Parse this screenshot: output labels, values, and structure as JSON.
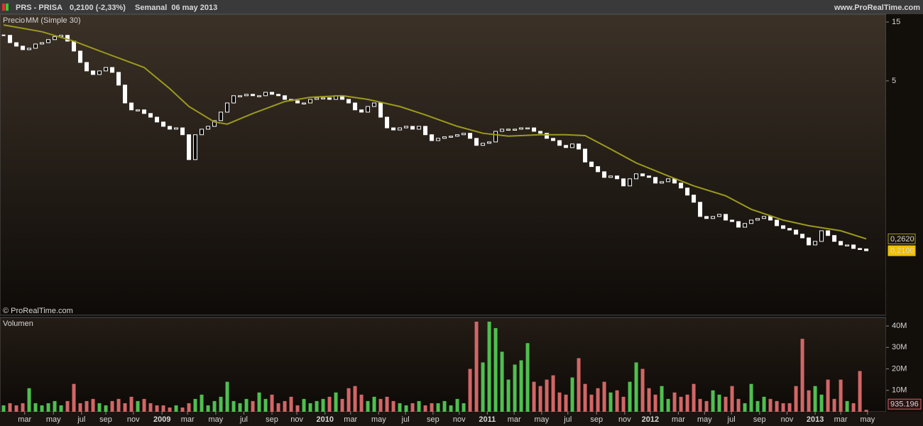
{
  "header": {
    "symbol": "PRS - PRISA",
    "quote": "0,2100 (-2,33%)",
    "period": "Semanal  06 may 2013",
    "site": "www.ProRealTime.com",
    "copyright": "© ProRealTime.com"
  },
  "chart_data": [
    {
      "type": "candlestick",
      "log_scale": true,
      "series": [
        {
          "name": "Precio",
          "color": "#ffffff",
          "values": [
            11.7,
            10.2,
            9.56,
            8.95,
            9.19,
            9.95,
            10.2,
            10.8,
            11.4,
            11.7,
            10.5,
            8.72,
            7.05,
            6.02,
            5.63,
            6.02,
            6.42,
            5.86,
            4.62,
            3.31,
            2.91,
            2.91,
            2.72,
            2.54,
            2.32,
            2.14,
            2.03,
            2.08,
            1.83,
            1.15,
            1.83,
            2.03,
            2.14,
            2.38,
            2.79,
            3.31,
            3.79,
            3.79,
            3.89,
            3.79,
            3.79,
            4.04,
            3.89,
            3.79,
            3.54,
            3.45,
            3.31,
            3.31,
            3.54,
            3.64,
            3.64,
            3.54,
            3.79,
            3.54,
            3.31,
            2.91,
            2.79,
            3.1,
            3.31,
            2.54,
            2.08,
            2.0,
            2.08,
            2.14,
            2.03,
            2.14,
            1.83,
            1.64,
            1.71,
            1.76,
            1.78,
            1.83,
            1.88,
            1.71,
            1.5,
            1.56,
            1.6,
            1.95,
            2.03,
            2.03,
            2.03,
            2.08,
            2.08,
            1.95,
            1.88,
            1.71,
            1.64,
            1.5,
            1.44,
            1.54,
            1.4,
            1.1,
            1.01,
            0.917,
            0.825,
            0.848,
            0.804,
            0.704,
            0.804,
            0.882,
            0.848,
            0.825,
            0.742,
            0.762,
            0.804,
            0.742,
            0.677,
            0.593,
            0.519,
            0.398,
            0.383,
            0.398,
            0.414,
            0.372,
            0.362,
            0.326,
            0.349,
            0.372,
            0.383,
            0.398,
            0.372,
            0.335,
            0.318,
            0.309,
            0.286,
            0.267,
            0.234,
            0.25,
            0.305,
            0.279,
            0.25,
            0.234,
            0.234,
            0.219,
            0.217,
            0.21
          ]
        },
        {
          "name": "MM (Simple 30)",
          "color": "#9c9a1c",
          "x": [
            0,
            6,
            11,
            16,
            22,
            26,
            29,
            33,
            35,
            39,
            44,
            48,
            53,
            57,
            62,
            66,
            71,
            75,
            79,
            84,
            88,
            91,
            95,
            99,
            104,
            108,
            113,
            117,
            122,
            126,
            131,
            135
          ],
          "values": [
            14.2,
            12.5,
            10.5,
            8.37,
            6.42,
            4.32,
            3.1,
            2.32,
            2.23,
            2.72,
            3.4,
            3.68,
            3.79,
            3.54,
            3.1,
            2.65,
            2.14,
            1.88,
            1.78,
            1.83,
            1.83,
            1.8,
            1.4,
            1.08,
            0.848,
            0.704,
            0.585,
            0.455,
            0.372,
            0.335,
            0.305,
            0.262
          ]
        }
      ],
      "xlim": [
        -0.56,
        138.1
      ],
      "xticks": [
        {
          "value": 3.3,
          "label": "mar"
        },
        {
          "value": 7.8,
          "label": "may"
        },
        {
          "value": 12.2,
          "label": "jul"
        },
        {
          "value": 16,
          "label": "sep"
        },
        {
          "value": 20.3,
          "label": "nov"
        },
        {
          "value": 24.8,
          "label": "2009"
        },
        {
          "value": 28.8,
          "label": "mar"
        },
        {
          "value": 33.2,
          "label": "may"
        },
        {
          "value": 37.6,
          "label": "jul"
        },
        {
          "value": 42,
          "label": "sep"
        },
        {
          "value": 45.9,
          "label": "nov"
        },
        {
          "value": 50.3,
          "label": "2010"
        },
        {
          "value": 54.3,
          "label": "mar"
        },
        {
          "value": 58.7,
          "label": "may"
        },
        {
          "value": 62.9,
          "label": "jul"
        },
        {
          "value": 67.2,
          "label": "sep"
        },
        {
          "value": 71.3,
          "label": "nov"
        },
        {
          "value": 75.7,
          "label": "2011"
        },
        {
          "value": 79.9,
          "label": "mar"
        },
        {
          "value": 84.2,
          "label": "may"
        },
        {
          "value": 88.3,
          "label": "jul"
        },
        {
          "value": 92.8,
          "label": "sep"
        },
        {
          "value": 97.2,
          "label": "nov"
        },
        {
          "value": 101.2,
          "label": "2012"
        },
        {
          "value": 105.6,
          "label": "mar"
        },
        {
          "value": 109.7,
          "label": "may"
        },
        {
          "value": 113.9,
          "label": "jul"
        },
        {
          "value": 118.3,
          "label": "sep"
        },
        {
          "value": 122.6,
          "label": "nov"
        },
        {
          "value": 127,
          "label": "2013"
        },
        {
          "value": 131,
          "label": "mar"
        },
        {
          "value": 135.2,
          "label": "may"
        }
      ],
      "ylim": [
        0.063,
        17.35
      ],
      "yticks": [
        15,
        5
      ],
      "last_labels": [
        {
          "value": 0.262,
          "label": "0,2620"
        },
        {
          "value": 0.21,
          "label": "0,2100"
        }
      ]
    },
    {
      "type": "bar",
      "title": "Volumen",
      "up_color": "#4fbf4f",
      "down_color": "#d26666",
      "values": [
        3,
        4,
        3,
        4,
        11,
        4,
        3,
        4,
        5,
        3,
        5,
        13,
        4,
        5,
        6,
        4,
        3,
        5,
        6,
        4,
        7,
        5,
        6,
        4,
        3,
        3,
        2,
        3,
        2,
        4,
        6,
        8,
        3,
        5,
        7,
        14,
        5,
        4,
        6,
        5,
        9,
        6,
        8,
        4,
        5,
        7,
        3,
        6,
        4,
        5,
        6,
        7,
        9,
        6,
        11,
        12,
        8,
        5,
        7,
        6,
        7,
        5,
        4,
        3,
        4,
        5,
        3,
        4,
        4,
        5,
        3,
        6,
        4,
        20,
        42,
        23,
        42,
        39,
        28,
        15,
        22,
        24,
        32,
        14,
        12,
        15,
        17,
        9,
        8,
        16,
        25,
        13,
        8,
        11,
        14,
        9,
        10,
        7,
        14,
        23,
        20,
        11,
        8,
        12,
        6,
        9,
        7,
        8,
        13,
        6,
        5,
        10,
        8,
        7,
        12,
        6,
        4,
        13,
        5,
        7,
        6,
        5,
        4,
        4,
        12,
        34,
        10,
        12,
        8,
        15,
        6,
        15,
        5,
        4,
        19,
        0.935196
      ],
      "ylim": [
        0,
        44
      ],
      "yticks": [
        {
          "value": 10,
          "label": "10M"
        },
        {
          "value": 20,
          "label": "20M"
        },
        {
          "value": 30,
          "label": "30M"
        },
        {
          "value": 40,
          "label": "40M"
        }
      ],
      "last_label": {
        "value": 0.935196,
        "label": "935.196"
      }
    }
  ]
}
